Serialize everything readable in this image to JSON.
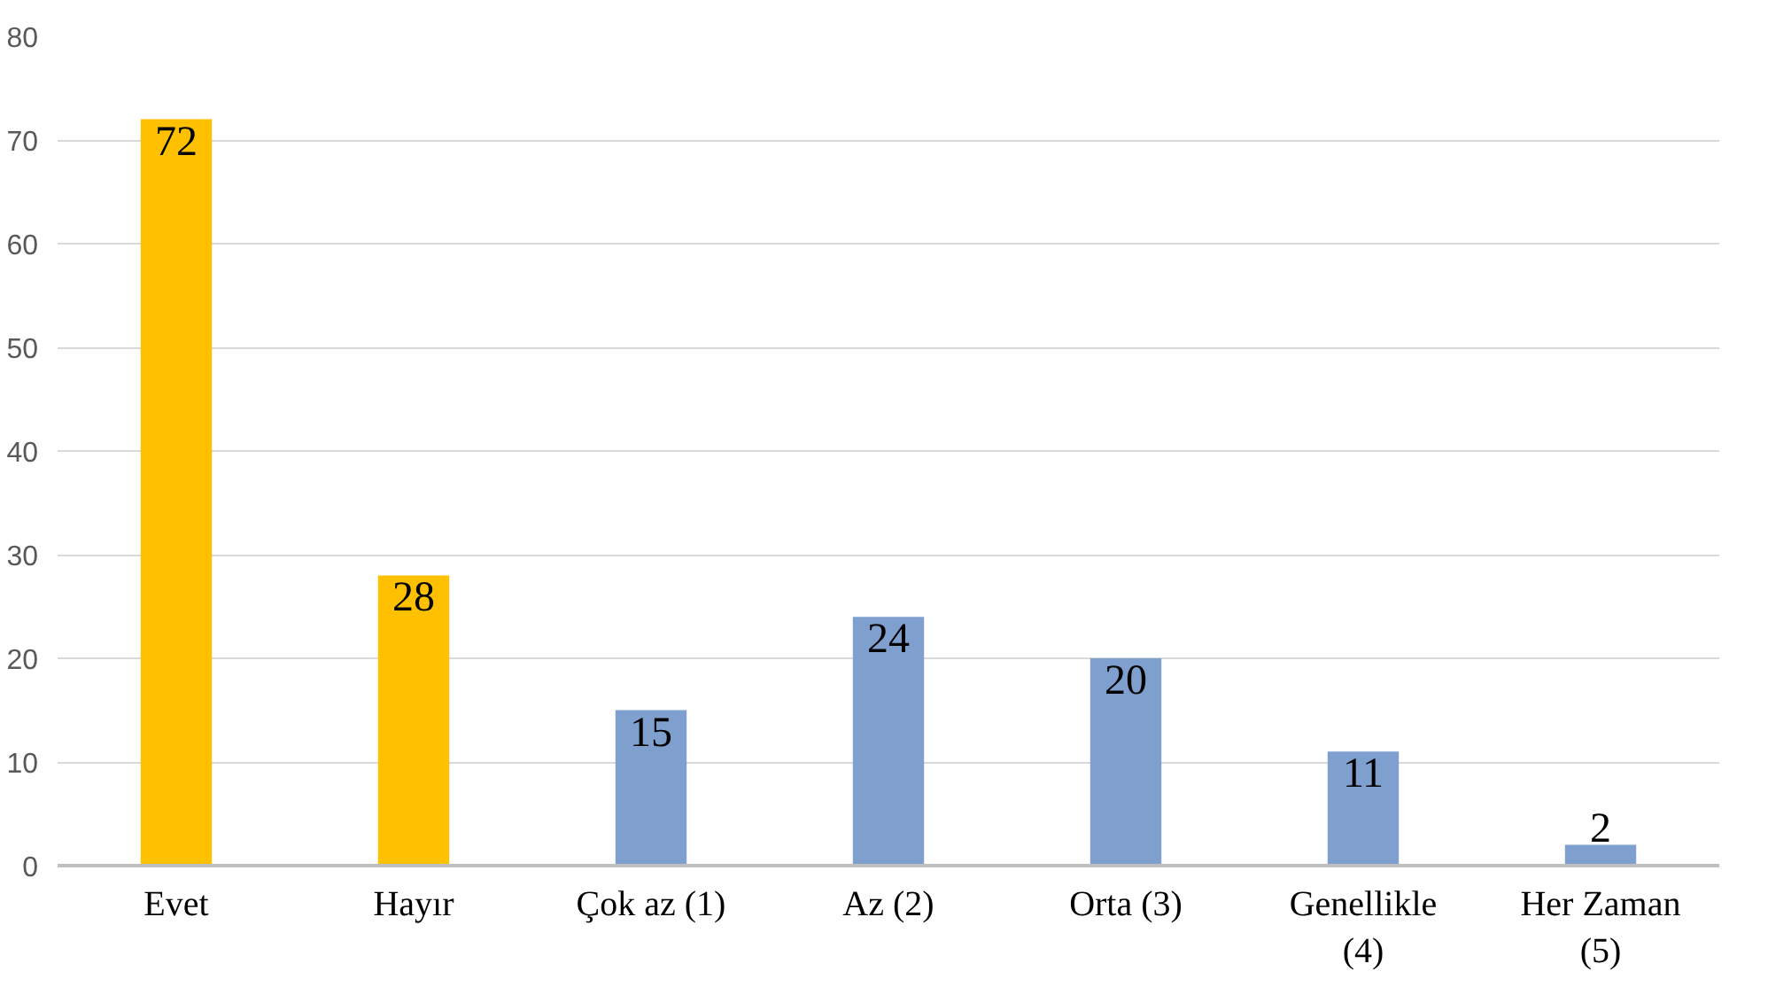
{
  "chart_data": {
    "type": "bar",
    "categories": [
      "Evet",
      "Hayır",
      "Çok az (1)",
      "Az (2)",
      "Orta (3)",
      "Genellikle (4)",
      "Her Zaman (5)"
    ],
    "values": [
      72,
      28,
      15,
      24,
      20,
      11,
      2
    ],
    "colors": [
      "#ffc000",
      "#ffc000",
      "#7f9fcf",
      "#7f9fcf",
      "#7f9fcf",
      "#7f9fcf",
      "#7f9fcf"
    ],
    "ylim": [
      0,
      80
    ],
    "yticks": [
      0,
      10,
      20,
      30,
      40,
      50,
      60,
      70,
      80
    ],
    "grid": "y",
    "data_labels": true
  }
}
